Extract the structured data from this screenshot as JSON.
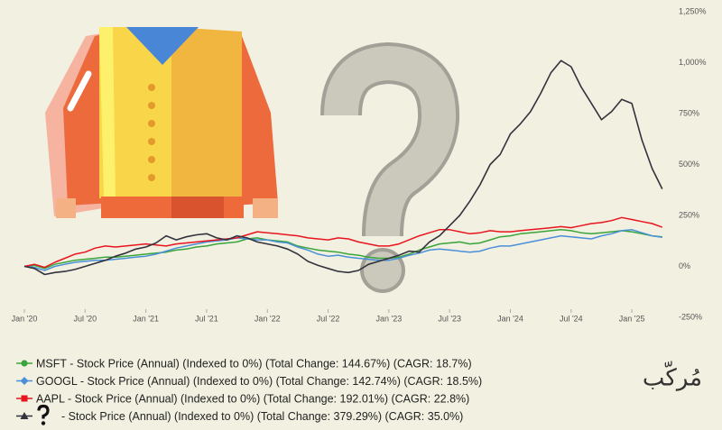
{
  "chart_data": {
    "type": "line",
    "x": [
      0,
      1,
      2,
      3,
      4,
      5,
      6,
      7,
      8,
      9,
      10,
      11,
      12,
      13,
      14,
      15,
      16,
      17,
      18,
      19,
      20,
      21,
      22,
      23,
      24,
      25,
      26,
      27,
      28,
      29,
      30,
      31,
      32,
      33,
      34,
      35,
      36,
      37,
      38,
      39,
      40,
      41,
      42,
      43,
      44,
      45,
      46,
      47,
      48,
      49,
      50,
      51,
      52,
      53,
      54,
      55,
      56,
      57,
      58,
      59,
      60,
      61,
      62,
      63
    ],
    "xlim": [
      -1,
      64
    ],
    "xticks": [
      {
        "value": 0,
        "label": "Jan '20"
      },
      {
        "value": 6,
        "label": "Jul '20"
      },
      {
        "value": 12,
        "label": "Jan '21"
      },
      {
        "value": 18,
        "label": "Jul '21"
      },
      {
        "value": 24,
        "label": "Jan '22"
      },
      {
        "value": 30,
        "label": "Jul '22"
      },
      {
        "value": 36,
        "label": "Jan '23"
      },
      {
        "value": 42,
        "label": "Jul '23"
      },
      {
        "value": 48,
        "label": "Jan '24"
      },
      {
        "value": 54,
        "label": "Jul '24"
      },
      {
        "value": 60,
        "label": "Jan '25"
      }
    ],
    "ylim": [
      -250,
      1250
    ],
    "yticks": [
      {
        "value": 1250,
        "label": "1,250%"
      },
      {
        "value": 1000,
        "label": "1,000%"
      },
      {
        "value": 750,
        "label": "750%"
      },
      {
        "value": 500,
        "label": "500%"
      },
      {
        "value": 250,
        "label": "250%"
      },
      {
        "value": 0,
        "label": "0%"
      },
      {
        "value": -250,
        "label": "-250%"
      }
    ],
    "grid": false,
    "series": [
      {
        "name": "MSFT - Stock Price (Annual) (Indexed to 0%) (Total Change: 144.67%) (CAGR: 18.7%)",
        "color": "#3aa53a",
        "marker": "circle",
        "values": [
          0,
          5,
          -10,
          10,
          20,
          30,
          35,
          40,
          45,
          45,
          50,
          55,
          60,
          65,
          70,
          80,
          85,
          95,
          100,
          110,
          115,
          120,
          135,
          140,
          130,
          125,
          120,
          100,
          90,
          80,
          75,
          70,
          60,
          55,
          45,
          40,
          40,
          45,
          60,
          80,
          95,
          110,
          115,
          120,
          110,
          115,
          130,
          145,
          150,
          160,
          165,
          170,
          175,
          180,
          175,
          165,
          160,
          165,
          170,
          175,
          170,
          160,
          150,
          145
        ]
      },
      {
        "name": "GOOGL - Stock Price (Annual) (Indexed to 0%) (Total Change: 142.74%) (CAGR: 18.5%)",
        "color": "#4a90d9",
        "marker": "diamond",
        "values": [
          0,
          -5,
          -20,
          0,
          10,
          20,
          25,
          30,
          30,
          35,
          40,
          45,
          50,
          60,
          75,
          90,
          100,
          110,
          120,
          125,
          130,
          140,
          135,
          130,
          130,
          120,
          115,
          95,
          80,
          60,
          50,
          55,
          45,
          40,
          35,
          30,
          30,
          40,
          55,
          65,
          80,
          85,
          80,
          75,
          70,
          75,
          90,
          100,
          100,
          110,
          120,
          130,
          140,
          150,
          145,
          140,
          135,
          150,
          160,
          175,
          180,
          165,
          150,
          143
        ]
      },
      {
        "name": "AAPL - Stock Price (Annual) (Indexed to 0%) (Total Change: 192.01%) (CAGR: 22.8%)",
        "color": "#e8141e",
        "marker": "square",
        "values": [
          0,
          10,
          -5,
          20,
          40,
          60,
          70,
          90,
          100,
          95,
          100,
          105,
          110,
          105,
          100,
          110,
          115,
          120,
          125,
          130,
          135,
          140,
          155,
          170,
          165,
          160,
          155,
          150,
          140,
          135,
          130,
          140,
          135,
          120,
          110,
          100,
          100,
          110,
          130,
          150,
          165,
          180,
          180,
          170,
          160,
          165,
          175,
          170,
          170,
          175,
          180,
          185,
          190,
          195,
          190,
          200,
          210,
          215,
          225,
          240,
          230,
          220,
          210,
          192
        ]
      },
      {
        "name": "- Stock Price (Annual) (Indexed to 0%) (Total Change: 379.29%) (CAGR: 35.0%)",
        "color": "#33333d",
        "marker": "triangle",
        "values": [
          0,
          -10,
          -40,
          -30,
          -25,
          -15,
          0,
          15,
          30,
          50,
          65,
          85,
          95,
          115,
          150,
          130,
          145,
          155,
          160,
          140,
          130,
          150,
          140,
          120,
          110,
          100,
          85,
          60,
          25,
          5,
          -10,
          -25,
          -30,
          -20,
          10,
          25,
          40,
          55,
          75,
          70,
          120,
          150,
          200,
          250,
          320,
          400,
          500,
          550,
          650,
          700,
          760,
          850,
          950,
          1010,
          980,
          880,
          800,
          720,
          760,
          820,
          800,
          620,
          480,
          380
        ]
      }
    ],
    "logo": "مُركّب"
  }
}
